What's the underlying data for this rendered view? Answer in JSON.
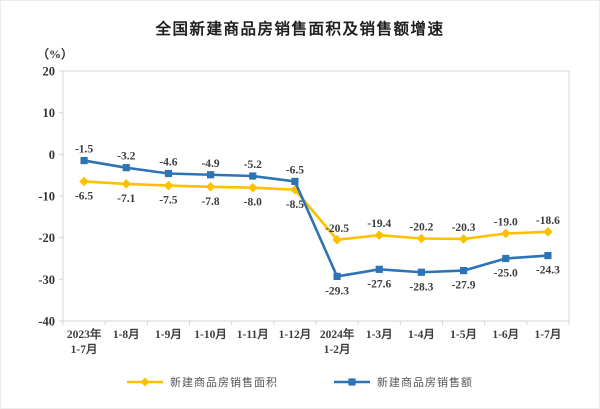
{
  "title": "全国新建商品房销售面积及销售额增速",
  "unit_label": "（%）",
  "chart_data": {
    "type": "line",
    "title": "全国新建商品房销售面积及销售额增速",
    "ylabel": "（%）",
    "xlabel": "",
    "ylim": [
      -40,
      20
    ],
    "yticks": [
      20,
      10,
      0,
      -10,
      -20,
      -30,
      -40
    ],
    "grid": false,
    "legend_position": "bottom",
    "axis_color": "#d6d6d6",
    "label_color": "#3d3d3d",
    "categories": [
      "2023年\n1-7月",
      "1-8月",
      "1-9月",
      "1-10月",
      "1-11月",
      "1-12月",
      "2024年\n1-2月",
      "1-3月",
      "1-4月",
      "1-5月",
      "1-6月",
      "1-7月"
    ],
    "series": [
      {
        "name": "新建商品房销售面积",
        "color": "#FFC000",
        "marker": "diamond",
        "values": [
          -6.5,
          -7.1,
          -7.5,
          -7.8,
          -8.0,
          -8.5,
          -20.5,
          -19.4,
          -20.2,
          -20.3,
          -19.0,
          -18.6
        ],
        "label_positions": [
          "below",
          "below",
          "below",
          "below",
          "below",
          "below",
          "above",
          "above",
          "above",
          "above",
          "above",
          "above"
        ]
      },
      {
        "name": "新建商品房销售额",
        "color": "#2E74B5",
        "marker": "square",
        "values": [
          -1.5,
          -3.2,
          -4.6,
          -4.9,
          -5.2,
          -6.5,
          -29.3,
          -27.6,
          -28.3,
          -27.9,
          -25.0,
          -24.3
        ],
        "label_positions": [
          "above",
          "above",
          "above",
          "above",
          "above",
          "above",
          "below",
          "below",
          "below",
          "below",
          "below",
          "below"
        ]
      }
    ]
  }
}
